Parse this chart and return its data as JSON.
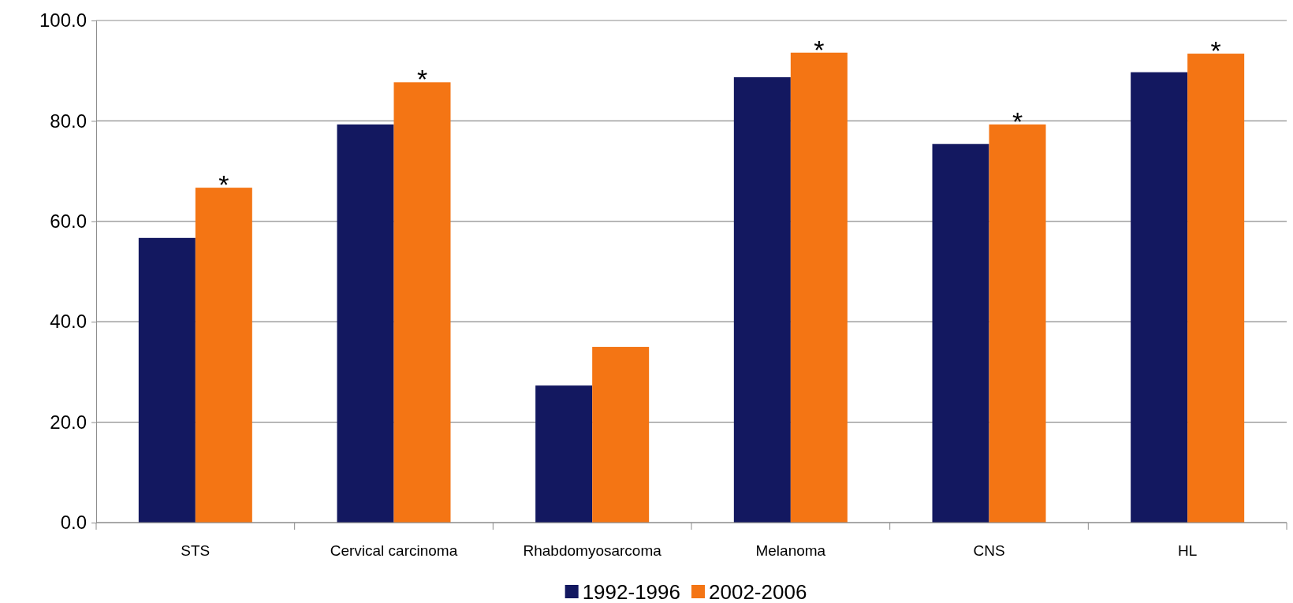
{
  "chart_data": {
    "type": "bar",
    "categories": [
      "STS",
      "Cervical carcinoma",
      "Rhabdomyosarcoma",
      "Melanoma",
      "CNS",
      "HL"
    ],
    "series": [
      {
        "name": "1992-1996",
        "color": "#131860",
        "values": [
          56.7,
          79.3,
          27.3,
          88.7,
          75.4,
          89.7
        ]
      },
      {
        "name": "2002-2006",
        "color": "#f47514",
        "values": [
          66.7,
          87.7,
          35.0,
          93.6,
          79.3,
          93.4
        ]
      }
    ],
    "ylim": [
      0,
      100
    ],
    "yticks": [
      {
        "value": 0,
        "label": "0.0"
      },
      {
        "value": 20,
        "label": "20.0"
      },
      {
        "value": 40,
        "label": "40.0"
      },
      {
        "value": 60,
        "label": "60.0"
      },
      {
        "value": 80,
        "label": "80.0"
      },
      {
        "value": 100,
        "label": "100.0"
      }
    ],
    "grid": "y",
    "legend": "bottom",
    "annotations": [
      {
        "text": "*",
        "x": "STS",
        "y": 66.7
      },
      {
        "text": "*",
        "x": "Cervical carcinoma",
        "y": 87.7
      },
      {
        "text": "*",
        "x": "Melanoma",
        "y": 93.6
      },
      {
        "text": "*",
        "x": "CNS",
        "y": 79.3
      },
      {
        "text": "*",
        "x": "HL",
        "y": 93.4
      }
    ]
  }
}
